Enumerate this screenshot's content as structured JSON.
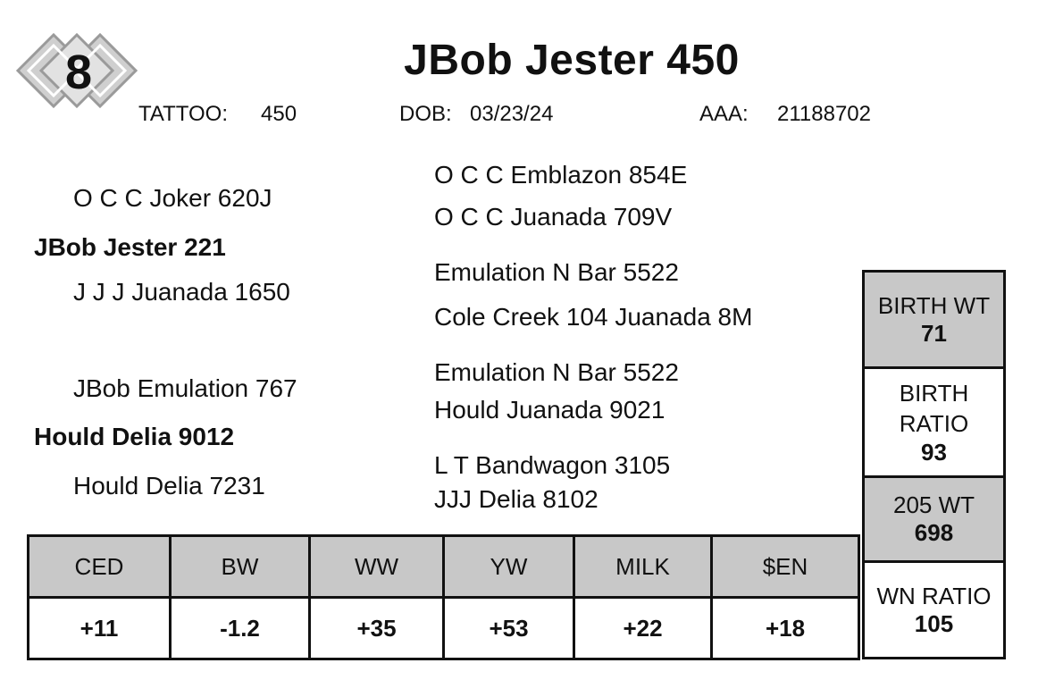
{
  "lot": "8",
  "name": "JBob Jester 450",
  "tattoo": {
    "label": "TATTOO:",
    "value": "450"
  },
  "dob": {
    "label": "DOB:",
    "value": "03/23/24"
  },
  "aaa": {
    "label": "AAA:",
    "value": "21188702"
  },
  "pedigree": {
    "parents": [
      "JBob Jester 221",
      "Hould Delia 9012"
    ],
    "grandparents": [
      "O C C Joker 620J",
      "J J J Juanada 1650",
      "JBob Emulation 767",
      "Hould Delia 7231"
    ],
    "great_grandparents": [
      "O C C Emblazon 854E",
      "O C C Juanada 709V",
      "Emulation N Bar 5522",
      "Cole Creek 104 Juanada 8M",
      "Emulation N Bar 5522",
      "Hould Juanada 9021",
      "L T Bandwagon 3105",
      "JJJ Delia 8102"
    ]
  },
  "epd": {
    "headers": [
      "CED",
      "BW",
      "WW",
      "YW",
      "MILK",
      "$EN"
    ],
    "values": [
      "+11",
      "-1.2",
      "+35",
      "+53",
      "+22",
      "+18"
    ]
  },
  "stats": [
    {
      "label": "BIRTH WT",
      "value": "71"
    },
    {
      "label": "BIRTH RATIO",
      "value": "93"
    },
    {
      "label": "205 WT",
      "value": "698"
    },
    {
      "label": "WN RATIO",
      "value": "105"
    }
  ]
}
